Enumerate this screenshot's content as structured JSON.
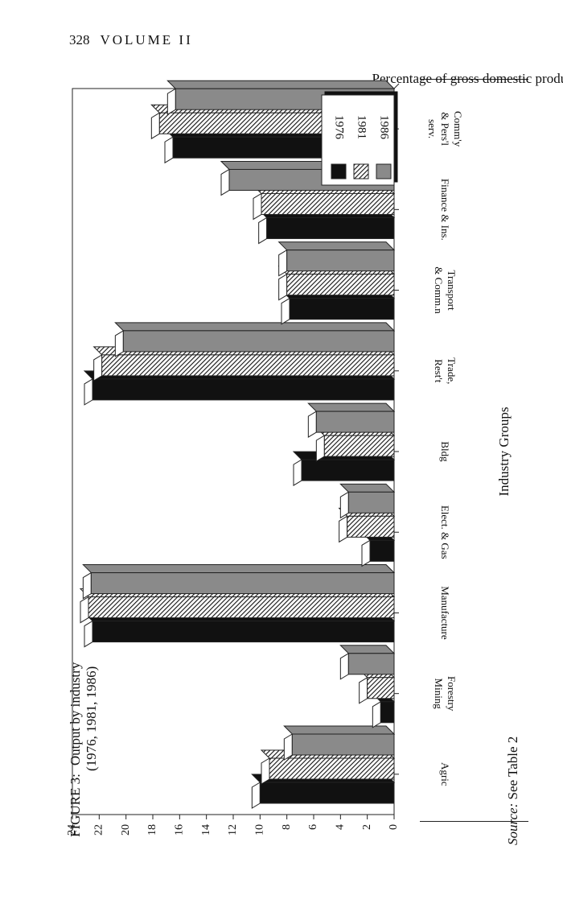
{
  "page": {
    "number": "328",
    "running_head": "VOLUME II"
  },
  "figure": {
    "label": "FIGURE 3:",
    "caption_line1": "Output by industry",
    "caption_line2": "(1976, 1981, 1986)",
    "source_label": "Source:",
    "source_text": " See Table 2"
  },
  "colors": {
    "1976": "#111111",
    "1981": "hatched",
    "1986": "#8a8a8a"
  },
  "chart_data": {
    "type": "bar",
    "ylabel": "Percentage of gross domestic product",
    "xlabel": "Industry Groups",
    "ylim": [
      0,
      24
    ],
    "yticks": [
      0,
      2,
      4,
      6,
      8,
      10,
      12,
      14,
      16,
      18,
      20,
      22,
      24
    ],
    "legend_position": "top-right",
    "categories": [
      [
        "Agric"
      ],
      [
        "Forestry",
        "Mining"
      ],
      [
        "Manufacture"
      ],
      [
        "Elect. & Gas"
      ],
      [
        "Bldg"
      ],
      [
        "Trade,",
        "Rest't"
      ],
      [
        "Transport",
        "& Comm.n"
      ],
      [
        "Finance & Ins."
      ],
      [
        "Comm'y",
        "& Pers'l",
        "serv."
      ]
    ],
    "series": [
      {
        "name": "1976",
        "values": [
          10.0,
          1.0,
          22.5,
          1.8,
          6.9,
          22.5,
          7.8,
          9.5,
          16.5
        ]
      },
      {
        "name": "1981",
        "values": [
          9.3,
          2.0,
          22.8,
          3.5,
          5.2,
          21.8,
          8.0,
          9.9,
          17.5
        ]
      },
      {
        "name": "1986",
        "values": [
          7.6,
          3.4,
          22.6,
          3.4,
          5.8,
          20.2,
          8.0,
          12.3,
          16.3
        ]
      }
    ]
  }
}
